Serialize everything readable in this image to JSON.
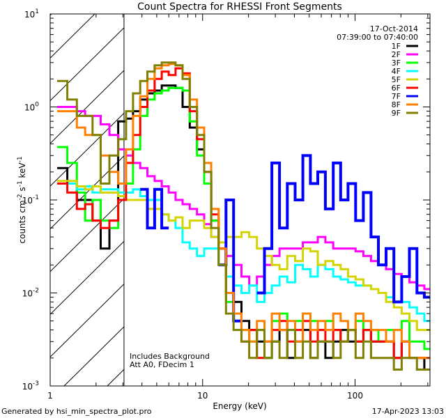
{
  "chart_data": {
    "type": "line",
    "title": "Count Spectra for RHESSI Front Segments",
    "xlabel": "Energy (keV)",
    "ylabel": "counts cm-2 s-1 keV-1",
    "xscale": "log",
    "yscale": "log",
    "xlim": [
      1,
      310
    ],
    "ylim": [
      0.001,
      10
    ],
    "x_tick_labels": [
      "1",
      "10",
      "100"
    ],
    "y_tick_labels": [
      {
        "base": "10",
        "exp": "1"
      },
      {
        "base": "10",
        "exp": "0"
      },
      {
        "base": "10",
        "exp": "-1"
      },
      {
        "base": "10",
        "exp": "-2"
      },
      {
        "base": "10",
        "exp": "-3"
      }
    ],
    "date": "17-Oct-2014",
    "time_range": "07:39:00 to 07:40:00",
    "annotations": [
      "Includes Background",
      "Att A0, FDecim 1"
    ],
    "hatched_region_keV": [
      1,
      3.05
    ],
    "legend_position": "top-right",
    "energies": [
      1.2,
      1.4,
      1.6,
      1.8,
      2.0,
      2.3,
      2.6,
      3.0,
      3.3,
      3.7,
      4.1,
      4.6,
      5.1,
      5.7,
      6.3,
      7.0,
      7.8,
      8.7,
      9.7,
      10.8,
      12,
      13.5,
      15,
      17,
      19,
      21.5,
      24,
      27,
      30,
      34,
      38,
      43,
      48,
      54,
      60,
      68,
      76,
      85,
      95,
      107,
      120,
      135,
      150,
      170,
      190,
      215,
      240,
      270,
      300
    ],
    "series": [
      {
        "name": "1F",
        "color": "#000000",
        "values": [
          0.22,
          0.15,
          0.1,
          0.1,
          0.06,
          0.03,
          0.06,
          0.7,
          0.75,
          0.9,
          1.2,
          1.4,
          1.5,
          1.7,
          1.7,
          1.6,
          1.0,
          0.6,
          0.35,
          0.15,
          0.06,
          0.03,
          0.015,
          0.008,
          0.005,
          0.004,
          0.003,
          0.002,
          0.003,
          0.004,
          0.002,
          0.003,
          0.004,
          0.002,
          0.003,
          0.002,
          0.003,
          0.004,
          0.003,
          0.003,
          0.004,
          0.003,
          0.003,
          0.003,
          0.002,
          0.003,
          0.002,
          0.002,
          0.0015
        ]
      },
      {
        "name": "2F",
        "color": "#ff00ff",
        "values": [
          1.0,
          1.0,
          0.9,
          0.8,
          0.8,
          0.65,
          0.5,
          0.35,
          0.3,
          0.25,
          0.22,
          0.18,
          0.16,
          0.14,
          0.12,
          0.1,
          0.09,
          0.08,
          0.07,
          0.055,
          0.04,
          0.03,
          0.025,
          0.02,
          0.015,
          0.012,
          0.015,
          0.02,
          0.025,
          0.03,
          0.03,
          0.03,
          0.035,
          0.035,
          0.04,
          0.035,
          0.03,
          0.03,
          0.03,
          0.028,
          0.025,
          0.022,
          0.02,
          0.018,
          0.016,
          0.015,
          0.013,
          0.012,
          0.011
        ]
      },
      {
        "name": "3F",
        "color": "#00ff00",
        "values": [
          0.37,
          0.25,
          0.12,
          0.06,
          0.1,
          0.06,
          0.05,
          0.1,
          0.15,
          0.35,
          0.8,
          1.2,
          1.4,
          1.5,
          1.6,
          1.6,
          1.5,
          0.7,
          0.3,
          0.15,
          0.06,
          0.02,
          0.008,
          0.005,
          0.004,
          0.003,
          0.004,
          0.002,
          0.005,
          0.006,
          0.004,
          0.005,
          0.006,
          0.005,
          0.004,
          0.005,
          0.004,
          0.003,
          0.004,
          0.005,
          0.004,
          0.004,
          0.003,
          0.004,
          0.004,
          0.005,
          0.003,
          0.003,
          0.0025
        ]
      },
      {
        "name": "4F",
        "color": "#00ffff",
        "values": [
          0.15,
          0.15,
          0.13,
          0.14,
          0.12,
          0.13,
          0.13,
          0.12,
          0.12,
          0.13,
          0.11,
          0.1,
          0.1,
          0.07,
          0.06,
          0.05,
          0.035,
          0.03,
          0.025,
          0.03,
          0.03,
          0.02,
          0.015,
          0.012,
          0.01,
          0.012,
          0.008,
          0.01,
          0.012,
          0.015,
          0.013,
          0.02,
          0.018,
          0.015,
          0.02,
          0.018,
          0.015,
          0.014,
          0.013,
          0.012,
          0.012,
          0.011,
          0.01,
          0.009,
          0.008,
          0.008,
          0.007,
          0.006,
          0.005
        ]
      },
      {
        "name": "5F",
        "color": "#d4d400",
        "values": [
          0.16,
          0.16,
          0.14,
          0.13,
          0.14,
          0.12,
          0.12,
          0.11,
          0.1,
          0.1,
          0.1,
          0.08,
          0.08,
          0.07,
          0.06,
          0.065,
          0.05,
          0.06,
          0.06,
          0.05,
          0.04,
          0.035,
          0.04,
          0.04,
          0.045,
          0.04,
          0.03,
          0.025,
          0.02,
          0.018,
          0.025,
          0.022,
          0.03,
          0.028,
          0.02,
          0.022,
          0.02,
          0.018,
          0.015,
          0.014,
          0.012,
          0.011,
          0.01,
          0.008,
          0.007,
          0.006,
          0.005,
          0.004,
          0.004
        ]
      },
      {
        "name": "6F",
        "color": "#ff0000",
        "values": [
          0.15,
          0.12,
          0.08,
          0.09,
          0.06,
          0.05,
          0.06,
          0.1,
          0.25,
          0.5,
          1.0,
          1.5,
          2.0,
          2.4,
          2.2,
          2.6,
          2.3,
          0.9,
          0.45,
          0.2,
          0.07,
          0.03,
          0.01,
          0.005,
          0.003,
          0.004,
          0.002,
          0.003,
          0.004,
          0.005,
          0.003,
          0.004,
          0.005,
          0.003,
          0.004,
          0.003,
          0.004,
          0.003,
          0.004,
          0.003,
          0.004,
          0.003,
          0.003,
          0.003,
          0.002,
          0.003,
          0.002,
          0.002,
          0.002
        ]
      },
      {
        "name": "7F",
        "color": "#0000ff",
        "values": [
          null,
          null,
          null,
          null,
          null,
          null,
          null,
          null,
          null,
          null,
          0.13,
          0.05,
          0.13,
          0.05,
          null,
          null,
          null,
          null,
          null,
          null,
          null,
          0.02,
          0.1,
          0.005,
          null,
          null,
          0.01,
          0.03,
          0.25,
          0.05,
          0.15,
          0.1,
          0.3,
          0.15,
          0.2,
          0.08,
          0.25,
          0.1,
          0.15,
          0.06,
          0.12,
          0.04,
          0.02,
          0.03,
          0.008,
          0.015,
          0.03,
          0.01,
          0.009
        ]
      },
      {
        "name": "8F",
        "color": "#ff8000",
        "values": [
          0.9,
          0.9,
          0.6,
          0.5,
          0.5,
          0.3,
          0.2,
          0.15,
          0.35,
          0.8,
          1.3,
          2.0,
          2.6,
          2.8,
          2.9,
          2.8,
          2.2,
          1.2,
          0.6,
          0.25,
          0.08,
          0.03,
          0.01,
          0.006,
          0.004,
          0.003,
          0.005,
          0.003,
          0.006,
          0.004,
          0.005,
          0.003,
          0.006,
          0.004,
          0.005,
          0.004,
          0.006,
          0.005,
          0.004,
          0.006,
          0.005,
          0.004,
          0.004,
          0.003,
          0.004,
          0.003,
          0.002,
          0.002,
          0.002
        ]
      },
      {
        "name": "9F",
        "color": "#808000",
        "values": [
          1.9,
          1.2,
          0.8,
          0.8,
          0.5,
          0.15,
          0.3,
          0.45,
          0.9,
          1.4,
          1.9,
          2.4,
          2.8,
          3.0,
          3.0,
          2.8,
          2.0,
          1.0,
          0.5,
          0.2,
          0.05,
          0.02,
          0.006,
          0.004,
          0.003,
          0.002,
          0.004,
          0.002,
          0.003,
          0.002,
          0.004,
          0.002,
          0.003,
          0.002,
          0.003,
          0.003,
          0.002,
          0.003,
          0.004,
          0.002,
          0.003,
          0.002,
          0.002,
          0.002,
          0.0015,
          0.002,
          0.002,
          0.0015,
          0.0015
        ]
      }
    ]
  },
  "footer": {
    "generated_by": "Generated by hsi_min_spectra_plot.pro",
    "timestamp": "17-Apr-2023 13:03"
  }
}
